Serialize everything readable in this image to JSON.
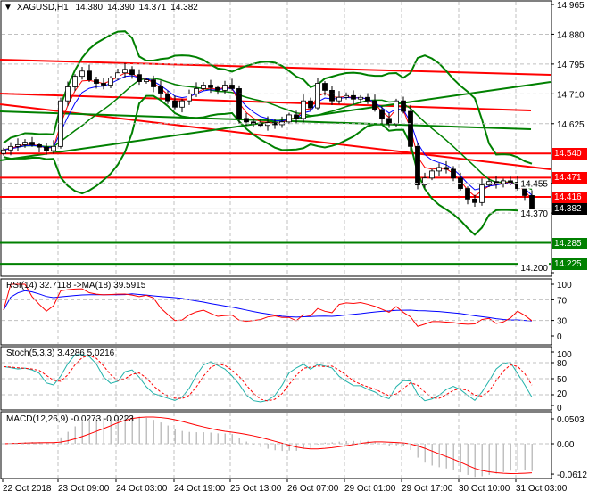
{
  "header": {
    "symbol": "XAGUSD,H1",
    "open": "14.380",
    "high": "14.390",
    "low": "14.371",
    "close": "14.382"
  },
  "colors": {
    "bull": "#000000",
    "bear": "#000000",
    "bollinger": "#008000",
    "resistance": "#ff0000",
    "support": "#008000",
    "rsi": "#ff0000",
    "rsi_ma": "#0000ff",
    "stoch_main": "#20b2aa",
    "stoch_signal": "#ff0000",
    "macd_hist": "#c0c0c0",
    "macd_signal": "#ff0000"
  },
  "price_axis": {
    "ticks": [
      "14.965",
      "14.880",
      "14.795",
      "14.710",
      "14.625",
      "14.455",
      "14.370",
      "14.200"
    ],
    "range": [
      14.2,
      14.965
    ]
  },
  "price_labels": [
    {
      "value": "14.540",
      "color": "#ff0000"
    },
    {
      "value": "14.471",
      "color": "#ff0000"
    },
    {
      "value": "14.416",
      "color": "#ff0000"
    },
    {
      "value": "14.382",
      "color": "#000000"
    },
    {
      "value": "14.285",
      "color": "#008000"
    },
    {
      "value": "14.225",
      "color": "#008000"
    }
  ],
  "indicators": {
    "rsi": {
      "label": "RSI(14) 32.7118  ->MA(18) 39.5915",
      "ticks": [
        "100",
        "70",
        "30",
        "0"
      ]
    },
    "stoch": {
      "label": "Stoch(5,3,3) 3.4286 5.0216",
      "ticks": [
        "100",
        "80",
        "50",
        "20",
        "0"
      ]
    },
    "macd": {
      "label": "MACD(12,26,9) -0.0273 -0.0223",
      "ticks": [
        "0.0503",
        "0.00",
        "-0.0612"
      ]
    }
  },
  "time_axis": [
    "22 Oct 2018",
    "23 Oct 09:00",
    "24 Oct 03:00",
    "24 Oct 19:00",
    "25 Oct 13:00",
    "26 Oct 07:00",
    "29 Oct 01:00",
    "29 Oct 17:00",
    "30 Oct 10:00",
    "31 Oct 03:00"
  ],
  "chart_data": {
    "type": "candlestick",
    "symbol": "XAGUSD",
    "timeframe": "H1",
    "closes": [
      14.55,
      14.56,
      14.565,
      14.572,
      14.565,
      14.558,
      14.548,
      14.56,
      14.69,
      14.73,
      14.76,
      14.775,
      14.75,
      14.74,
      14.735,
      14.755,
      14.77,
      14.78,
      14.765,
      14.745,
      14.75,
      14.73,
      14.71,
      14.69,
      14.672,
      14.69,
      14.71,
      14.725,
      14.735,
      14.728,
      14.72,
      14.735,
      14.725,
      14.64,
      14.63,
      14.625,
      14.62,
      14.628,
      14.622,
      14.63,
      14.65,
      14.64,
      14.69,
      14.67,
      14.74,
      14.72,
      14.69,
      14.7,
      14.705,
      14.695,
      14.7,
      14.69,
      14.665,
      14.64,
      14.625,
      14.69,
      14.66,
      14.56,
      14.45,
      14.47,
      14.49,
      14.5,
      14.495,
      14.47,
      14.44,
      14.41,
      14.4,
      14.45,
      14.46,
      14.455,
      14.462,
      14.458,
      14.44,
      14.42,
      14.382
    ],
    "horizontal_levels": {
      "resistance": [
        14.54,
        14.471,
        14.416
      ],
      "support": [
        14.285,
        14.225
      ]
    },
    "ylim": [
      14.2,
      14.965
    ]
  }
}
